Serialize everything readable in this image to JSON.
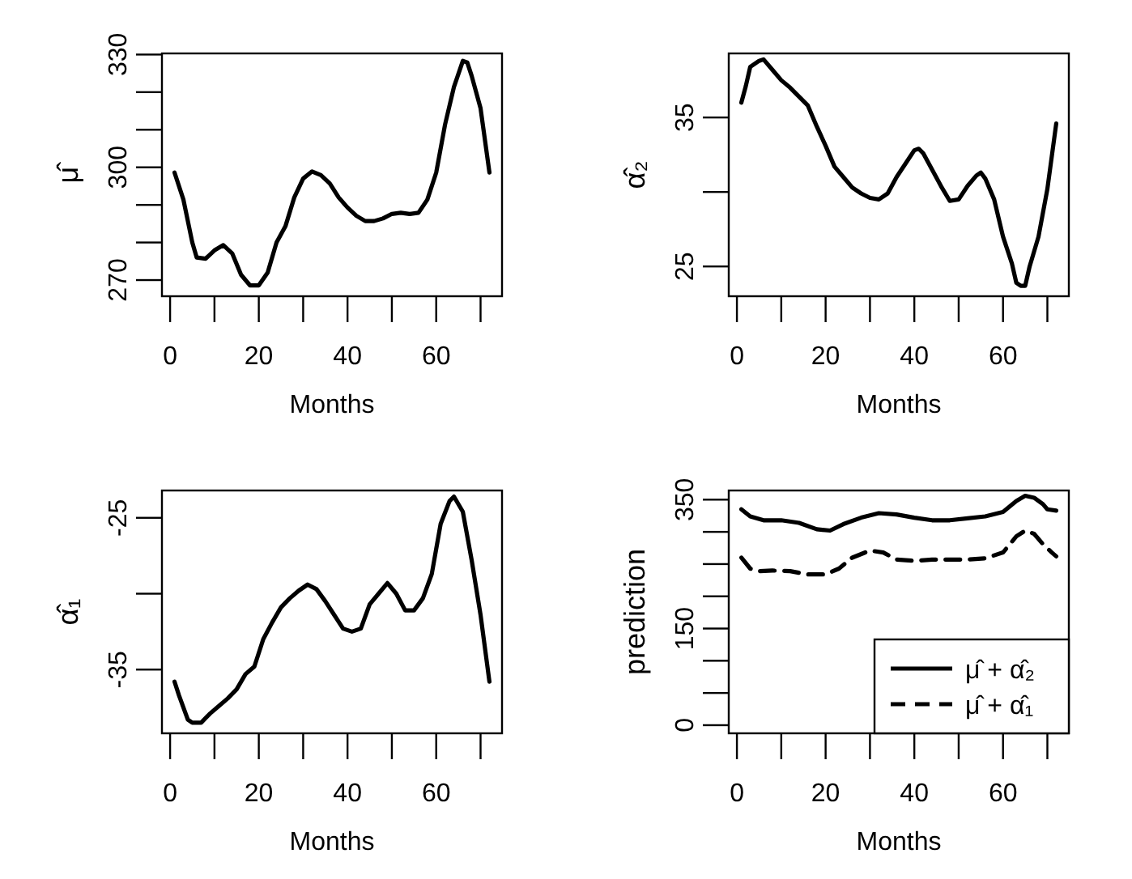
{
  "chart_data": [
    {
      "type": "line",
      "xlabel": "Months",
      "ylabel": "μ̂",
      "line_style": "solid",
      "grid": false,
      "xlim": [
        -1.84,
        74.84
      ],
      "ylim": [
        265.7,
        330.3
      ],
      "xticks": [
        0,
        {
          "value": 10,
          "label": null
        },
        20,
        {
          "value": 30,
          "label": null
        },
        40,
        {
          "value": 50,
          "label": null
        },
        60,
        {
          "value": 70,
          "label": null
        }
      ],
      "yticks": [
        270,
        {
          "value": 280,
          "label": null
        },
        {
          "value": 290,
          "label": null
        },
        300,
        {
          "value": 310,
          "label": null
        },
        {
          "value": 320,
          "label": null
        },
        330
      ],
      "series": [
        {
          "color": "#000000",
          "x": [
            1,
            3,
            5,
            6,
            8,
            10,
            12,
            14,
            16,
            18,
            20,
            22,
            24,
            26,
            28,
            30,
            32,
            34,
            36,
            38,
            40,
            42,
            44,
            46,
            48,
            50,
            52,
            54,
            56,
            58,
            60,
            62,
            64,
            66,
            67,
            68,
            70,
            72
          ],
          "values": [
            298.6,
            291.4,
            280,
            276,
            275.7,
            277.9,
            279.3,
            277.1,
            271.4,
            268.6,
            268.6,
            272,
            280,
            284.3,
            292,
            297,
            298.9,
            297.9,
            295.7,
            292,
            289.3,
            287.1,
            285.7,
            285.7,
            286.4,
            287.6,
            287.9,
            287.6,
            287.9,
            291.4,
            298.6,
            311.4,
            321.4,
            328.3,
            327.9,
            324.3,
            315.7,
            298.6
          ]
        }
      ]
    },
    {
      "type": "line",
      "xlabel": "Months",
      "ylabel": "α̂₂",
      "line_style": "solid",
      "grid": false,
      "xlim": [
        -1.84,
        74.84
      ],
      "ylim": [
        23.0,
        39.3
      ],
      "xticks": [
        0,
        {
          "value": 10,
          "label": null
        },
        20,
        {
          "value": 30,
          "label": null
        },
        40,
        {
          "value": 50,
          "label": null
        },
        60,
        {
          "value": 70,
          "label": null
        }
      ],
      "yticks": [
        25,
        {
          "value": 30,
          "label": null
        },
        35
      ],
      "series": [
        {
          "color": "#000000",
          "x": [
            1,
            2,
            3,
            5,
            6,
            8,
            10,
            12,
            14,
            16,
            18,
            20,
            22,
            24,
            26,
            28,
            30,
            32,
            34,
            36,
            38,
            40,
            41,
            42,
            44,
            46,
            48,
            50,
            52,
            54,
            55,
            56,
            58,
            60,
            62,
            63,
            64,
            65,
            66,
            68,
            70,
            72
          ],
          "values": [
            36.0,
            37.1,
            38.4,
            38.8,
            38.9,
            38.2,
            37.5,
            37.0,
            36.4,
            35.8,
            34.4,
            33.1,
            31.7,
            31.0,
            30.3,
            29.9,
            29.6,
            29.5,
            29.9,
            31.0,
            31.9,
            32.8,
            32.9,
            32.6,
            31.5,
            30.4,
            29.4,
            29.5,
            30.4,
            31.1,
            31.3,
            30.9,
            29.5,
            27.0,
            25.2,
            23.9,
            23.7,
            23.7,
            25.0,
            27.0,
            30.2,
            34.6
          ]
        }
      ]
    },
    {
      "type": "line",
      "xlabel": "Months",
      "ylabel": "α̂₁",
      "line_style": "solid",
      "grid": false,
      "xlim": [
        -1.84,
        74.84
      ],
      "ylim": [
        -39.2,
        -23.2
      ],
      "xticks": [
        0,
        {
          "value": 10,
          "label": null
        },
        20,
        {
          "value": 30,
          "label": null
        },
        40,
        {
          "value": 50,
          "label": null
        },
        60,
        {
          "value": 70,
          "label": null
        }
      ],
      "yticks": [
        -35,
        {
          "value": -30,
          "label": null
        },
        -25
      ],
      "series": [
        {
          "color": "#000000",
          "x": [
            1,
            2,
            4,
            5,
            7,
            9,
            11,
            13,
            15,
            17,
            19,
            21,
            23,
            25,
            27,
            29,
            31,
            33,
            35,
            37,
            39,
            41,
            43,
            45,
            47,
            49,
            51,
            53,
            55,
            57,
            59,
            61,
            63,
            64,
            66,
            68,
            70,
            72
          ],
          "values": [
            -35.8,
            -36.7,
            -38.3,
            -38.5,
            -38.5,
            -37.9,
            -37.4,
            -36.9,
            -36.3,
            -35.3,
            -34.8,
            -33.0,
            -31.9,
            -30.9,
            -30.3,
            -29.8,
            -29.4,
            -29.7,
            -30.5,
            -31.4,
            -32.3,
            -32.5,
            -32.3,
            -30.7,
            -30.0,
            -29.3,
            -30.0,
            -31.1,
            -31.1,
            -30.3,
            -28.7,
            -25.4,
            -23.9,
            -23.6,
            -24.6,
            -27.8,
            -31.4,
            -35.8
          ]
        }
      ]
    },
    {
      "type": "line",
      "xlabel": "Months",
      "ylabel": "prediction",
      "grid": false,
      "legend": "bottom right",
      "xlim": [
        -1.84,
        74.84
      ],
      "ylim": [
        -12.6,
        364.2
      ],
      "xticks": [
        0,
        {
          "value": 10,
          "label": null
        },
        20,
        {
          "value": 30,
          "label": null
        },
        40,
        {
          "value": 50,
          "label": null
        },
        60,
        {
          "value": 70,
          "label": null
        }
      ],
      "yticks": [
        0,
        {
          "value": 50,
          "label": null
        },
        {
          "value": 100,
          "label": null
        },
        150,
        {
          "value": 200,
          "label": null
        },
        {
          "value": 250,
          "label": null
        },
        {
          "value": 300,
          "label": null
        },
        350
      ],
      "series": [
        {
          "name": "μ̂ + α̂₂",
          "color": "#000000",
          "line_style": "solid",
          "x": [
            1,
            3,
            6,
            10,
            14,
            18,
            21,
            24,
            28,
            32,
            36,
            40,
            44,
            48,
            52,
            56,
            60,
            63,
            65,
            67,
            69,
            70,
            72
          ],
          "values": [
            335,
            324,
            318,
            318,
            314,
            304,
            302,
            312,
            322,
            329,
            327,
            322,
            318,
            318,
            321,
            324,
            331,
            348,
            356,
            353,
            343,
            335,
            333
          ]
        },
        {
          "name": "μ̂ + α̂₁",
          "color": "#000000",
          "line_style": "dashed",
          "x": [
            1,
            3,
            5,
            8,
            12,
            16,
            20,
            23,
            26,
            30,
            33,
            36,
            40,
            44,
            48,
            52,
            56,
            60,
            63,
            65,
            67,
            69,
            71,
            72
          ],
          "values": [
            260,
            243,
            239,
            240,
            239,
            234,
            234,
            243,
            260,
            271,
            268,
            257,
            255,
            257,
            257,
            257,
            259,
            268,
            293,
            302,
            297,
            281,
            268,
            262
          ]
        }
      ]
    }
  ]
}
